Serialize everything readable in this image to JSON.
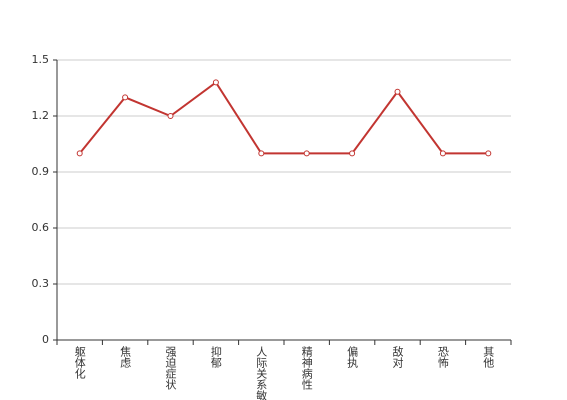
{
  "chart_data": {
    "type": "line",
    "categories": [
      "躯体化",
      "焦虑",
      "强迫症状",
      "抑郁",
      "人际关系敏感",
      "精神病性",
      "偏执",
      "敌对",
      "恐怖",
      "其他"
    ],
    "values": [
      1.0,
      1.3,
      1.2,
      1.38,
      1.0,
      1.0,
      1.0,
      1.33,
      1.0,
      1.0
    ],
    "color": "#c23531",
    "ylim": [
      0,
      1.5
    ],
    "yticks": [
      0,
      0.3,
      0.6,
      0.9,
      1.2,
      1.5
    ],
    "grid": true
  }
}
